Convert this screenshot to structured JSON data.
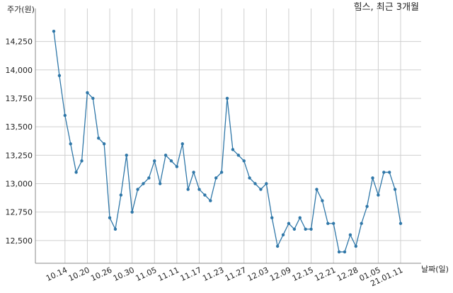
{
  "chart_data": {
    "type": "line",
    "title": "힘스, 최근 3개월",
    "y_label": "주가(원)",
    "x_label": "날짜(일)",
    "categories": [
      null,
      null,
      "10.14",
      null,
      null,
      null,
      "10.20",
      null,
      null,
      null,
      "10.26",
      null,
      null,
      null,
      "10.30",
      null,
      null,
      null,
      "11.05",
      null,
      null,
      null,
      "11.11",
      null,
      null,
      null,
      "11.17",
      null,
      null,
      null,
      "11.23",
      null,
      null,
      null,
      "11.27",
      null,
      null,
      null,
      "12.03",
      null,
      null,
      null,
      "12.09",
      null,
      null,
      null,
      "12.15",
      null,
      null,
      null,
      "12.21",
      null,
      null,
      null,
      "12.28",
      null,
      null,
      null,
      "01.05",
      null,
      null,
      null,
      "21.01.11"
    ],
    "series": [
      {
        "color": "#2f77a8",
        "values": [
          14340,
          13950,
          13600,
          13350,
          13100,
          13200,
          13800,
          13750,
          13400,
          13350,
          12700,
          12600,
          12900,
          13250,
          12750,
          12950,
          13000,
          13050,
          13200,
          13000,
          13250,
          13200,
          13150,
          13350,
          12950,
          13100,
          12950,
          12900,
          12850,
          13050,
          13100,
          13750,
          13300,
          13250,
          13200,
          13050,
          13000,
          12950,
          13000,
          12700,
          12450,
          12550,
          12650,
          12600,
          12700,
          12600,
          12600,
          12950,
          12850,
          12650,
          12650,
          12400,
          12400,
          12550,
          12450,
          12650,
          12800,
          13050,
          12900,
          13100,
          13100,
          12950,
          12650
        ]
      }
    ],
    "ylim": [
      12300,
      14540
    ],
    "yticks": [
      {
        "value": 12500,
        "label": "12,500"
      },
      {
        "value": 12750,
        "label": "12,750"
      },
      {
        "value": 13000,
        "label": "13,000"
      },
      {
        "value": 13250,
        "label": "13,250"
      },
      {
        "value": 13500,
        "label": "13,500"
      },
      {
        "value": 13750,
        "label": "13,750"
      },
      {
        "value": 14000,
        "label": "14,000"
      },
      {
        "value": 14250,
        "label": "14,250"
      }
    ],
    "grid": true
  }
}
